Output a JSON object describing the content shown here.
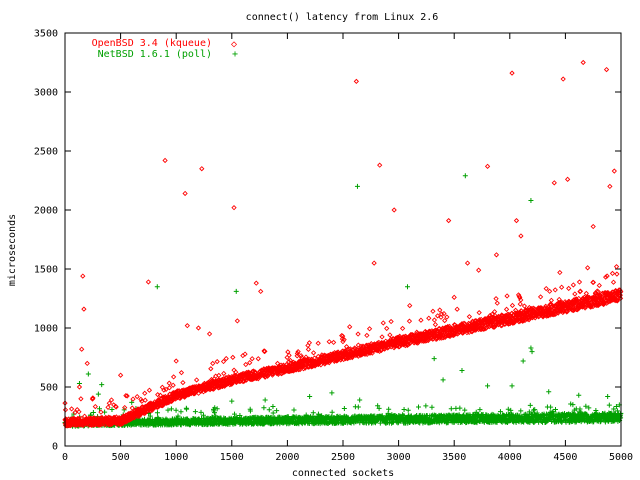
{
  "chart_data": {
    "type": "scatter",
    "title": "connect() latency from Linux 2.6",
    "xlabel": "connected sockets",
    "ylabel": "microseconds",
    "xlim": [
      0,
      5000
    ],
    "ylim": [
      0,
      3500
    ],
    "xticks": [
      0,
      500,
      1000,
      1500,
      2000,
      2500,
      3000,
      3500,
      4000,
      4500,
      5000
    ],
    "yticks": [
      0,
      500,
      1000,
      1500,
      2000,
      2500,
      3000,
      3500
    ],
    "grid": false,
    "legend": "top-left",
    "series": [
      {
        "name": "OpenBSD 3.4 (kqueue)",
        "marker": "◇",
        "color": "#ff0000",
        "band": {
          "x": [
            0,
            500,
            700,
            1000,
            1500,
            2000,
            2500,
            3000,
            3500,
            4000,
            4500,
            5000
          ],
          "y": [
            200,
            215,
            300,
            430,
            560,
            660,
            770,
            880,
            980,
            1080,
            1180,
            1280
          ],
          "spread": 45
        },
        "outliers": [
          {
            "x": 160,
            "y": 1440
          },
          {
            "x": 170,
            "y": 1160
          },
          {
            "x": 150,
            "y": 820
          },
          {
            "x": 200,
            "y": 700
          },
          {
            "x": 130,
            "y": 500
          },
          {
            "x": 250,
            "y": 400
          },
          {
            "x": 500,
            "y": 600
          },
          {
            "x": 750,
            "y": 1390
          },
          {
            "x": 900,
            "y": 2420
          },
          {
            "x": 1080,
            "y": 2140
          },
          {
            "x": 1230,
            "y": 2350
          },
          {
            "x": 1520,
            "y": 2020
          },
          {
            "x": 1100,
            "y": 1020
          },
          {
            "x": 1200,
            "y": 1000
          },
          {
            "x": 1300,
            "y": 950
          },
          {
            "x": 1000,
            "y": 720
          },
          {
            "x": 1550,
            "y": 1060
          },
          {
            "x": 1720,
            "y": 1380
          },
          {
            "x": 1760,
            "y": 1310
          },
          {
            "x": 2620,
            "y": 3090
          },
          {
            "x": 2560,
            "y": 1010
          },
          {
            "x": 2780,
            "y": 1550
          },
          {
            "x": 2830,
            "y": 2380
          },
          {
            "x": 2960,
            "y": 2000
          },
          {
            "x": 3100,
            "y": 1190
          },
          {
            "x": 3450,
            "y": 1910
          },
          {
            "x": 3500,
            "y": 1260
          },
          {
            "x": 3620,
            "y": 1550
          },
          {
            "x": 3720,
            "y": 1490
          },
          {
            "x": 3800,
            "y": 2370
          },
          {
            "x": 3880,
            "y": 1620
          },
          {
            "x": 4020,
            "y": 3160
          },
          {
            "x": 4060,
            "y": 1910
          },
          {
            "x": 4100,
            "y": 1780
          },
          {
            "x": 4400,
            "y": 2230
          },
          {
            "x": 4480,
            "y": 3110
          },
          {
            "x": 4520,
            "y": 2260
          },
          {
            "x": 4660,
            "y": 3250
          },
          {
            "x": 4750,
            "y": 1860
          },
          {
            "x": 4870,
            "y": 3190
          },
          {
            "x": 4900,
            "y": 2200
          },
          {
            "x": 4940,
            "y": 2330
          },
          {
            "x": 4960,
            "y": 1520
          },
          {
            "x": 4700,
            "y": 1510
          },
          {
            "x": 4450,
            "y": 1470
          }
        ]
      },
      {
        "name": "NetBSD 1.6.1 (poll)",
        "marker": "+",
        "color": "#00a000",
        "band": {
          "x": [
            0,
            500,
            1000,
            1500,
            2000,
            2500,
            3000,
            3500,
            4000,
            4500,
            5000
          ],
          "y": [
            190,
            200,
            205,
            212,
            218,
            222,
            226,
            230,
            234,
            238,
            242
          ],
          "spread": 35
        },
        "outliers": [
          {
            "x": 210,
            "y": 610
          },
          {
            "x": 130,
            "y": 530
          },
          {
            "x": 330,
            "y": 520
          },
          {
            "x": 300,
            "y": 440
          },
          {
            "x": 600,
            "y": 370
          },
          {
            "x": 830,
            "y": 1350
          },
          {
            "x": 1540,
            "y": 1310
          },
          {
            "x": 1500,
            "y": 380
          },
          {
            "x": 2630,
            "y": 2200
          },
          {
            "x": 2400,
            "y": 450
          },
          {
            "x": 2650,
            "y": 390
          },
          {
            "x": 3080,
            "y": 1350
          },
          {
            "x": 3320,
            "y": 740
          },
          {
            "x": 3600,
            "y": 2290
          },
          {
            "x": 3570,
            "y": 640
          },
          {
            "x": 3400,
            "y": 560
          },
          {
            "x": 3800,
            "y": 510
          },
          {
            "x": 4020,
            "y": 510
          },
          {
            "x": 4120,
            "y": 720
          },
          {
            "x": 4190,
            "y": 2080
          },
          {
            "x": 4190,
            "y": 830
          },
          {
            "x": 4200,
            "y": 800
          },
          {
            "x": 4350,
            "y": 460
          },
          {
            "x": 4620,
            "y": 430
          },
          {
            "x": 4880,
            "y": 420
          },
          {
            "x": 2200,
            "y": 420
          },
          {
            "x": 1800,
            "y": 390
          }
        ]
      }
    ]
  }
}
